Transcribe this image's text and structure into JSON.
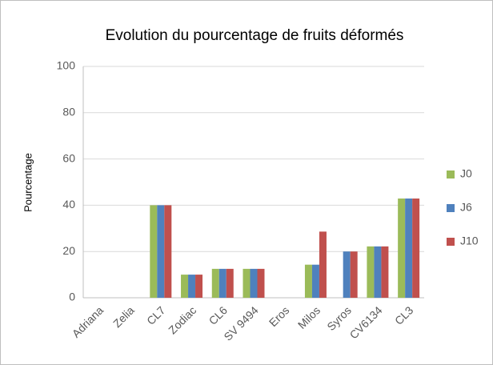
{
  "chart_data": {
    "type": "bar",
    "title": "Evolution du pourcentage de fruits déformés",
    "y_label": "Pourcentage",
    "categories": [
      "Adriana",
      "Zelia",
      "CL7",
      "Zodiac",
      "CL6",
      "SV 9494",
      "Eros",
      "Milos",
      "Syros",
      "CV6134",
      "CL3"
    ],
    "series": [
      {
        "name": "J0",
        "color": "#9bbb59",
        "values": [
          0,
          0,
          40,
          10,
          12.5,
          12.5,
          0,
          14.3,
          0,
          22.2,
          42.9
        ]
      },
      {
        "name": "J6",
        "color": "#4f81bd",
        "values": [
          0,
          0,
          40,
          10,
          12.5,
          12.5,
          0,
          14.3,
          20,
          22.2,
          42.9
        ]
      },
      {
        "name": "J10",
        "color": "#c0504d",
        "values": [
          0,
          0,
          40,
          10,
          12.5,
          12.5,
          0,
          28.6,
          20,
          22.2,
          42.9
        ]
      }
    ],
    "ylim": [
      0,
      100
    ],
    "yticks": [
      0,
      20,
      40,
      60,
      80,
      100
    ],
    "grid": true,
    "legend": "right"
  }
}
